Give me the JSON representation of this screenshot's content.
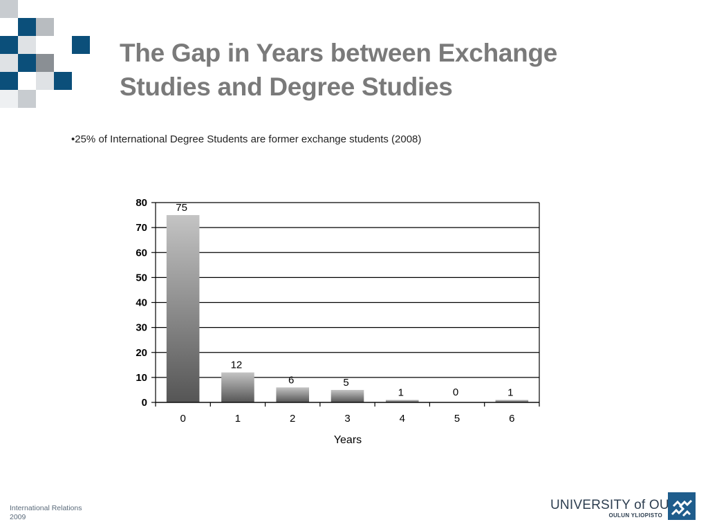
{
  "slide": {
    "title_line1": "The Gap in Years between Exchange",
    "title_line2": "Studies and Degree Studies",
    "bullet": "•25% of International Degree Students are former exchange students (2008)",
    "footer_line1": "International Relations",
    "footer_line2": "2009",
    "university_name": "UNIVERSITY of OULU",
    "university_subname": "OULUN YLIOPISTO"
  },
  "colors": {
    "title": "#7a7a7a",
    "logo_blue": "#0b4f7a",
    "logo_gray_light": "#c8ccd0",
    "logo_gray_mid": "#8a8f94",
    "bar_top": "#c4c4c4",
    "bar_bottom": "#555555"
  },
  "chart_data": {
    "type": "bar",
    "categories": [
      "0",
      "1",
      "2",
      "3",
      "4",
      "5",
      "6"
    ],
    "values": [
      75,
      12,
      6,
      5,
      1,
      0,
      1
    ],
    "data_labels": [
      "75",
      "12",
      "6",
      "5",
      "1",
      "0",
      "1"
    ],
    "title": "",
    "xlabel": "Years",
    "ylabel": "",
    "ylim": [
      0,
      80
    ],
    "yticks": [
      0,
      10,
      20,
      30,
      40,
      50,
      60,
      70,
      80
    ],
    "grid": true,
    "legend": "none"
  }
}
